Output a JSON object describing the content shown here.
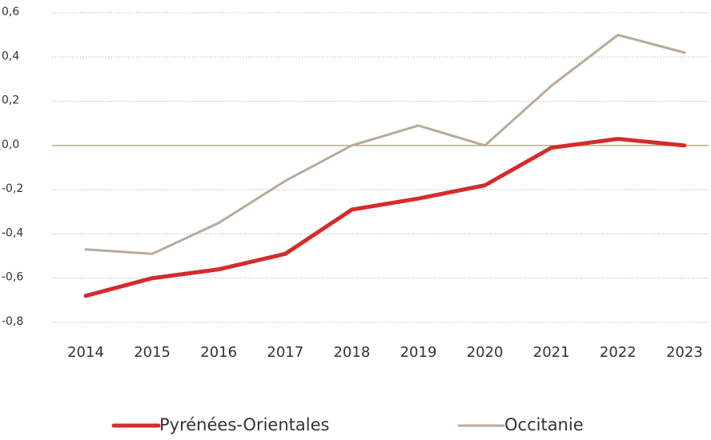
{
  "chart_data": {
    "type": "line",
    "categories": [
      "2014",
      "2015",
      "2016",
      "2017",
      "2018",
      "2019",
      "2020",
      "2021",
      "2022",
      "2023"
    ],
    "series": [
      {
        "name": "Pyrénées-Orientales",
        "color": "#d62b2b",
        "values": [
          -0.68,
          -0.6,
          -0.56,
          -0.49,
          -0.29,
          -0.24,
          -0.18,
          -0.01,
          0.03,
          0.0
        ]
      },
      {
        "name": "Occitanie",
        "color": "#b9aa9a",
        "values": [
          -0.47,
          -0.49,
          -0.35,
          -0.16,
          0.0,
          0.09,
          0.0,
          0.27,
          0.5,
          0.42
        ]
      }
    ],
    "ylim": [
      -0.8,
      0.6
    ],
    "yticks": [
      {
        "value": -0.8,
        "label": "-0,8"
      },
      {
        "value": -0.6,
        "label": "-0,6"
      },
      {
        "value": -0.4,
        "label": "-0,4"
      },
      {
        "value": -0.2,
        "label": "-0,2"
      },
      {
        "value": 0,
        "label": "0,0"
      },
      {
        "value": 0.2,
        "label": "0,2"
      },
      {
        "value": 0.4,
        "label": "0,4"
      },
      {
        "value": 0.6,
        "label": "0,6"
      }
    ],
    "grid": true,
    "legend": "bottom"
  }
}
